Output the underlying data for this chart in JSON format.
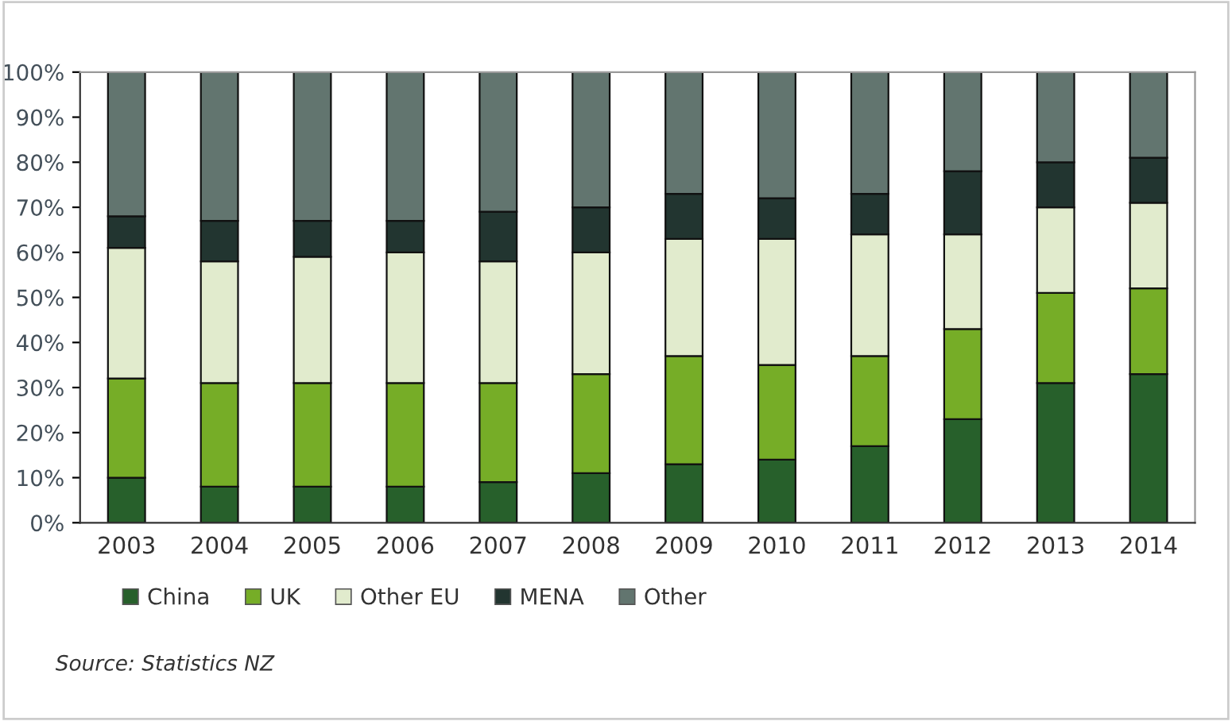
{
  "chart_data": {
    "type": "bar",
    "stacked": true,
    "categories": [
      "2003",
      "2004",
      "2005",
      "2006",
      "2007",
      "2008",
      "2009",
      "2010",
      "2011",
      "2012",
      "2013",
      "2014"
    ],
    "series": [
      {
        "name": "China",
        "color": "#27602b",
        "values": [
          10,
          8,
          8,
          8,
          9,
          11,
          13,
          14,
          17,
          23,
          31,
          33
        ]
      },
      {
        "name": "UK",
        "color": "#76ad27",
        "values": [
          22,
          23,
          23,
          23,
          22,
          22,
          24,
          21,
          20,
          20,
          20,
          19
        ]
      },
      {
        "name": "Other EU",
        "color": "#e1ebcd",
        "values": [
          29,
          27,
          28,
          29,
          27,
          27,
          26,
          28,
          27,
          21,
          19,
          19
        ]
      },
      {
        "name": "MENA",
        "color": "#223530",
        "values": [
          7,
          9,
          8,
          7,
          11,
          10,
          10,
          9,
          9,
          14,
          10,
          10
        ]
      },
      {
        "name": "Other",
        "color": "#62756f",
        "values": [
          32,
          33,
          33,
          33,
          31,
          30,
          27,
          28,
          27,
          22,
          20,
          19
        ]
      }
    ],
    "ylim": [
      0,
      100
    ],
    "yticks": [
      {
        "value": 0,
        "label": "0%"
      },
      {
        "value": 10,
        "label": "10%"
      },
      {
        "value": 20,
        "label": "20%"
      },
      {
        "value": 30,
        "label": "30%"
      },
      {
        "value": 40,
        "label": "40%"
      },
      {
        "value": 50,
        "label": "50%"
      },
      {
        "value": 60,
        "label": "60%"
      },
      {
        "value": 70,
        "label": "70%"
      },
      {
        "value": 80,
        "label": "80%"
      },
      {
        "value": 90,
        "label": "90%"
      },
      {
        "value": 100,
        "label": "100%"
      }
    ],
    "grid": false,
    "legend": "bottom",
    "annotations": [
      "Source: Statistics NZ"
    ]
  }
}
